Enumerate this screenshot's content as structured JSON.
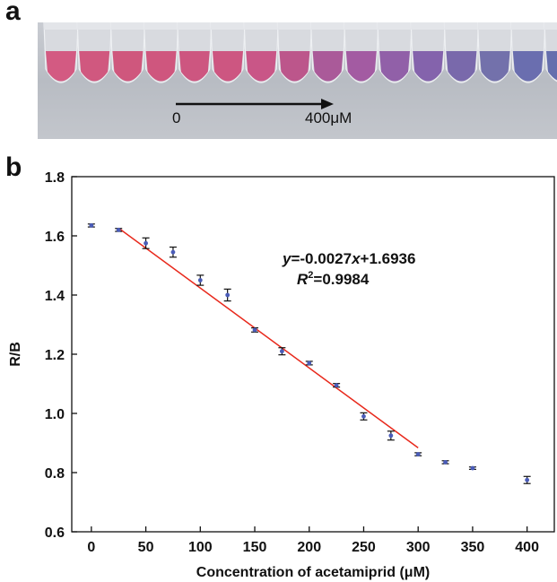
{
  "panels": {
    "a": "a",
    "b": "b"
  },
  "photo": {
    "tube_colors": [
      "#d3537c",
      "#d05179",
      "#cf5077",
      "#cf4f78",
      "#cc4f7a",
      "#cc4f7b",
      "#c84f82",
      "#ba4f86",
      "#a85395",
      "#a0549e",
      "#8d5aa4",
      "#805da9",
      "#7463a8",
      "#6e6ba8",
      "#6468ac",
      "#5f68aa"
    ],
    "arrow_start_label": "0",
    "arrow_end_label": "400μM"
  },
  "chart_data": {
    "type": "scatter",
    "title": "",
    "xlabel": "Concentration of acetamiprid (μM)",
    "ylabel": "R/B",
    "xlim": [
      -18,
      425
    ],
    "ylim": [
      0.6,
      1.8
    ],
    "xticks": [
      0,
      50,
      100,
      150,
      200,
      250,
      300,
      350,
      400
    ],
    "yticks": [
      0.6,
      0.8,
      1.0,
      1.2,
      1.4,
      1.6,
      1.8
    ],
    "grid": false,
    "series": [
      {
        "x": [
          0,
          25,
          50,
          75,
          100,
          125,
          150,
          175,
          200,
          225,
          250,
          275,
          300,
          325,
          350,
          400
        ],
        "y": [
          1.635,
          1.62,
          1.575,
          1.545,
          1.45,
          1.4,
          1.282,
          1.21,
          1.17,
          1.095,
          0.99,
          0.925,
          0.862,
          0.835,
          0.815,
          0.775
        ],
        "err": [
          0.005,
          0.005,
          0.018,
          0.017,
          0.017,
          0.02,
          0.007,
          0.012,
          0.006,
          0.006,
          0.012,
          0.015,
          0.005,
          0.005,
          0.004,
          0.012
        ],
        "color": "#4a5cb8"
      }
    ],
    "fit": {
      "x_range": [
        25,
        300
      ],
      "slope": -0.0027,
      "intercept": 1.6936,
      "color": "#e8291c"
    },
    "annotation": {
      "eq_y": "y",
      "eq_middle": "=-0.0027",
      "eq_x": "x",
      "eq_end": "+1.6936",
      "r_letter": "R",
      "r_sup": "2",
      "r_value": "=0.9984"
    }
  }
}
